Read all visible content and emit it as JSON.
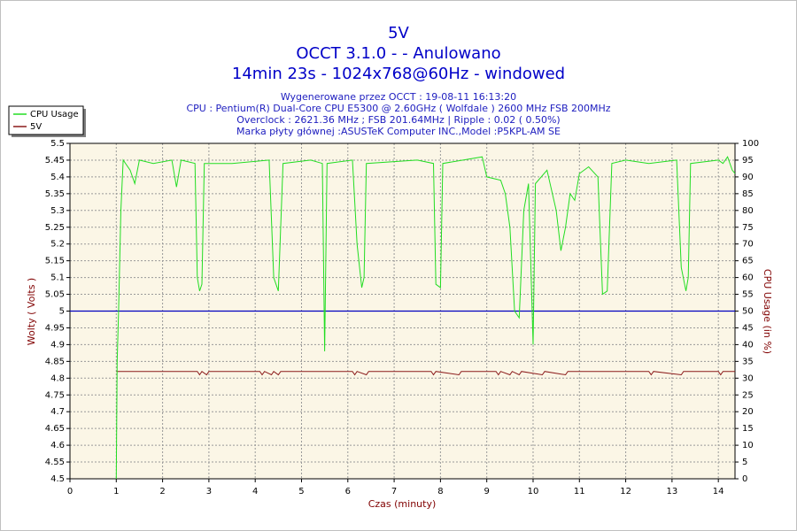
{
  "chart_data": {
    "type": "line",
    "title": "5V",
    "title_lines": [
      "OCCT 3.1.0 -  - Anulowano",
      "14min 23s - 1024x768@60Hz - windowed"
    ],
    "subtitle_lines": [
      "Wygenerowane przez OCCT : 19-08-11 16:13:20",
      "CPU : Pentium(R) Dual-Core CPU E5300 @ 2.60GHz ( Wolfdale ) 2600 MHz FSB 200MHz",
      "Overclock : 2621.36 MHz ; FSB 201.64MHz | Ripple : 0.02 ( 0.50%)",
      "Marka płyty głównej :ASUSTeK Computer INC.,Model :P5KPL-AM SE"
    ],
    "x_label": "Czas (minuty)",
    "y_label": "Wolty ( Volts )",
    "y2_label": "CPU Usage (in %)",
    "xlim": [
      0,
      14.36
    ],
    "xticks": [
      0,
      1,
      2,
      3,
      4,
      5,
      6,
      7,
      8,
      9,
      10,
      11,
      12,
      13,
      14
    ],
    "ylim": [
      4.5,
      5.5
    ],
    "yticks": [
      4.5,
      4.55,
      4.6,
      4.65,
      4.7,
      4.75,
      4.8,
      4.85,
      4.9,
      4.95,
      5,
      5.05,
      5.1,
      5.15,
      5.2,
      5.25,
      5.3,
      5.35,
      5.4,
      5.45,
      5.5
    ],
    "y2lim": [
      0,
      100
    ],
    "y2ticks": [
      0,
      5,
      10,
      15,
      20,
      25,
      30,
      35,
      40,
      45,
      50,
      55,
      60,
      65,
      70,
      75,
      80,
      85,
      90,
      95,
      100
    ],
    "grid": true,
    "legend": "top-left",
    "background": "#fbf6e6",
    "reference_line": {
      "value": 5,
      "color": "#0000c0"
    },
    "series": [
      {
        "name": "CPU Usage",
        "color": "#22dd22",
        "axis": "y2",
        "x": [
          1.0,
          1.02,
          1.05,
          1.1,
          1.15,
          1.3,
          1.4,
          1.5,
          1.8,
          2.2,
          2.3,
          2.4,
          2.7,
          2.75,
          2.8,
          2.85,
          2.9,
          3.5,
          4.3,
          4.4,
          4.5,
          4.6,
          5.2,
          5.45,
          5.5,
          5.55,
          6.1,
          6.2,
          6.3,
          6.35,
          6.4,
          7.5,
          7.85,
          7.9,
          8.0,
          8.05,
          8.9,
          9.0,
          9.3,
          9.4,
          9.5,
          9.6,
          9.7,
          9.8,
          9.9,
          10.0,
          10.05,
          10.3,
          10.5,
          10.6,
          10.7,
          10.8,
          10.9,
          11.0,
          11.2,
          11.4,
          11.5,
          11.6,
          11.7,
          12.0,
          12.5,
          13.1,
          13.2,
          13.3,
          13.35,
          13.4,
          14.0,
          14.1,
          14.2,
          14.3,
          14.36
        ],
        "values": [
          0,
          35,
          50,
          80,
          95,
          92,
          88,
          95,
          94,
          95,
          87,
          95,
          94,
          60,
          56,
          58,
          94,
          94,
          95,
          60,
          56,
          94,
          95,
          94,
          38,
          94,
          95,
          70,
          57,
          60,
          94,
          95,
          94,
          58,
          57,
          94,
          96,
          90,
          89,
          85,
          75,
          50,
          48,
          80,
          88,
          40,
          88,
          92,
          80,
          68,
          75,
          85,
          83,
          91,
          93,
          90,
          55,
          56,
          94,
          95,
          94,
          95,
          63,
          56,
          60,
          94,
          95,
          94,
          96,
          92,
          91
        ]
      },
      {
        "name": "5V",
        "color": "#8b1a1a",
        "x": [
          1.0,
          2.75,
          2.8,
          2.85,
          2.95,
          3.0,
          4.1,
          4.15,
          4.2,
          4.35,
          4.4,
          4.5,
          4.55,
          6.1,
          6.15,
          6.2,
          6.4,
          6.45,
          7.8,
          7.85,
          7.9,
          8.4,
          8.45,
          9.2,
          9.25,
          9.3,
          9.5,
          9.55,
          9.7,
          9.75,
          10.2,
          10.25,
          10.7,
          10.75,
          12.5,
          12.55,
          12.6,
          13.2,
          13.25,
          14.0,
          14.05,
          14.1,
          14.36
        ],
        "values": [
          4.82,
          4.82,
          4.81,
          4.82,
          4.81,
          4.82,
          4.82,
          4.81,
          4.82,
          4.81,
          4.82,
          4.81,
          4.82,
          4.82,
          4.81,
          4.82,
          4.81,
          4.82,
          4.82,
          4.81,
          4.82,
          4.81,
          4.82,
          4.82,
          4.81,
          4.82,
          4.81,
          4.82,
          4.81,
          4.82,
          4.81,
          4.82,
          4.81,
          4.82,
          4.82,
          4.81,
          4.82,
          4.81,
          4.82,
          4.82,
          4.81,
          4.82,
          4.82
        ]
      }
    ]
  }
}
